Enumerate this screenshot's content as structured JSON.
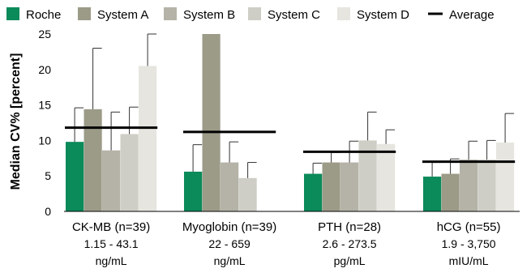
{
  "chart_data": {
    "type": "bar",
    "ylabel": "Median CV% [percent]",
    "ylim": [
      0,
      25
    ],
    "yticks": [
      "0",
      "5",
      "10",
      "15",
      "20",
      "25"
    ],
    "grid": false,
    "legend_position": "top",
    "categories": [
      {
        "name": "CK-MB (n=39)",
        "range": "1.15 - 43.1",
        "unit": "ng/mL"
      },
      {
        "name": "Myoglobin (n=39)",
        "range": "22 - 659",
        "unit": "ng/mL"
      },
      {
        "name": "PTH (n=28)",
        "range": "2.6 - 273.5",
        "unit": "pg/mL"
      },
      {
        "name": "hCG (n=55)",
        "range": "1.9 - 3,750",
        "unit": "mIU/mL"
      }
    ],
    "series": [
      {
        "name": "Roche",
        "color": "#0b8a5a",
        "values": [
          9.8,
          5.6,
          5.3,
          4.9
        ],
        "error_upper": [
          14.6,
          9.4,
          6.8,
          6.9
        ]
      },
      {
        "name": "System A",
        "color": "#9c9b88",
        "values": [
          14.4,
          25.3,
          6.9,
          5.3
        ],
        "error_upper": [
          23.0,
          null,
          8.3,
          7.4
        ]
      },
      {
        "name": "System B",
        "color": "#b5b3a7",
        "values": [
          8.6,
          6.9,
          6.9,
          7.3
        ],
        "error_upper": [
          14.0,
          9.8,
          9.9,
          9.9
        ]
      },
      {
        "name": "System C",
        "color": "#cfcec6",
        "values": [
          10.9,
          4.7,
          10.0,
          7.3
        ],
        "error_upper": [
          14.7,
          6.9,
          14.0,
          10.0
        ]
      },
      {
        "name": "System D",
        "color": "#e6e5df",
        "values": [
          20.5,
          null,
          9.5,
          9.7
        ],
        "error_upper": [
          25.3,
          null,
          11.5,
          13.8
        ]
      }
    ],
    "average": {
      "name": "Average",
      "color": "#000000",
      "values": [
        11.8,
        11.2,
        8.4,
        7.0
      ]
    }
  }
}
